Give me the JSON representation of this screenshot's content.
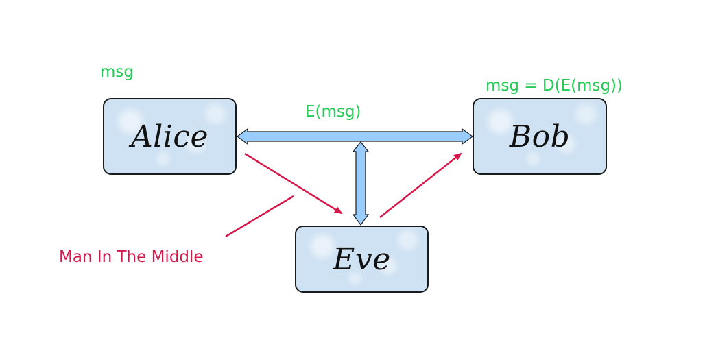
{
  "nodes": {
    "alice": "Alice",
    "bob": "Bob",
    "eve": "Eve"
  },
  "notes": {
    "alice_message": "msg",
    "channel_message": "E(msg)",
    "bob_decrypted": "msg = D(E(msg))",
    "attack_label": "Man In The Middle"
  },
  "colors": {
    "node_fill": "#cfe2f3",
    "note_green": "#22cc55",
    "attack_red": "#d4184a",
    "channel_fill": "#99ccff"
  }
}
